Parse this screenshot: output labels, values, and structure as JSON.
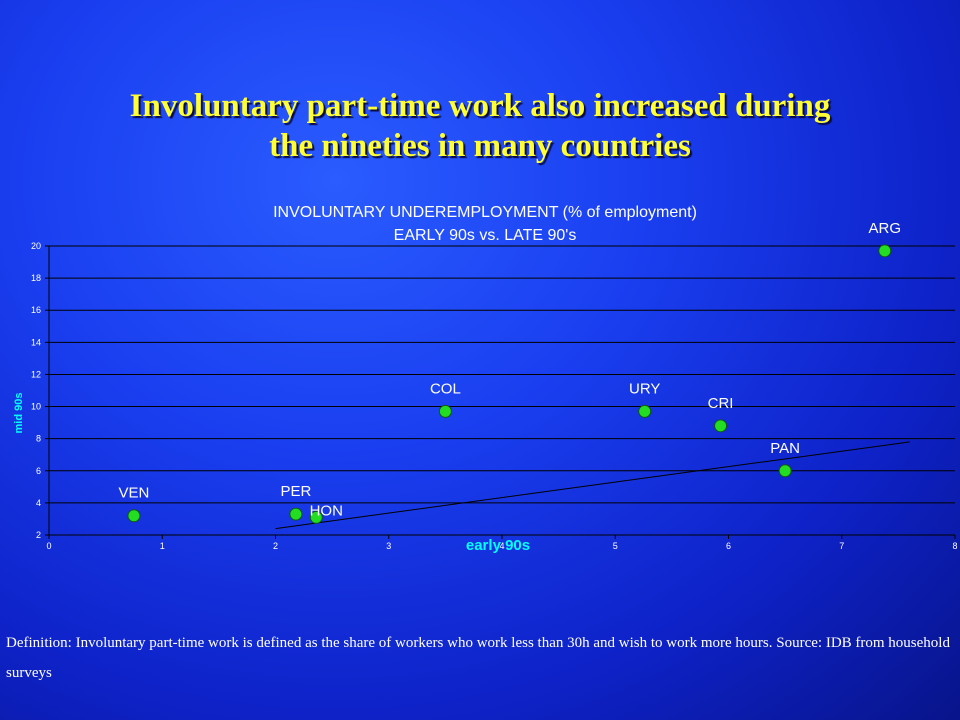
{
  "slide": {
    "title_line1": "Involuntary part-time work also increased during",
    "title_line2": "the nineties in many countries",
    "definition": "Definition:  Involuntary part-time work is defined as the share of workers who work less than 30h and wish to work more hours. Source: IDB from household surveys"
  },
  "chart_data": {
    "type": "scatter",
    "title": "INVOLUNTARY UNDEREMPLOYMENT (% of employment)",
    "subtitle": "EARLY 90s vs. LATE 90's",
    "xlabel": "early 90s",
    "ylabel": "mid 90s",
    "xlim": [
      0,
      8
    ],
    "ylim": [
      2,
      20
    ],
    "x_ticks": [
      0,
      1,
      2,
      3,
      4,
      5,
      6,
      7,
      8
    ],
    "y_ticks": [
      2,
      4,
      6,
      8,
      10,
      12,
      14,
      16,
      18,
      20
    ],
    "grid": "horizontal",
    "points": [
      {
        "label": "VEN",
        "x": 0.75,
        "y": 3.2
      },
      {
        "label": "PER",
        "x": 2.18,
        "y": 3.3
      },
      {
        "label": "HON",
        "x": 2.36,
        "y": 3.1
      },
      {
        "label": "COL",
        "x": 3.5,
        "y": 9.7
      },
      {
        "label": "URY",
        "x": 5.26,
        "y": 9.7
      },
      {
        "label": "CRI",
        "x": 5.93,
        "y": 8.8
      },
      {
        "label": "PAN",
        "x": 6.5,
        "y": 6.0
      },
      {
        "label": "ARG",
        "x": 7.38,
        "y": 19.7
      }
    ],
    "trendline": {
      "x": [
        2.0,
        7.6
      ],
      "y": [
        2.4,
        7.8
      ]
    },
    "colors": {
      "point": "#22dd22",
      "text": "#ffffff",
      "axis_title": "#00ffff",
      "trendline": "#000000"
    }
  }
}
